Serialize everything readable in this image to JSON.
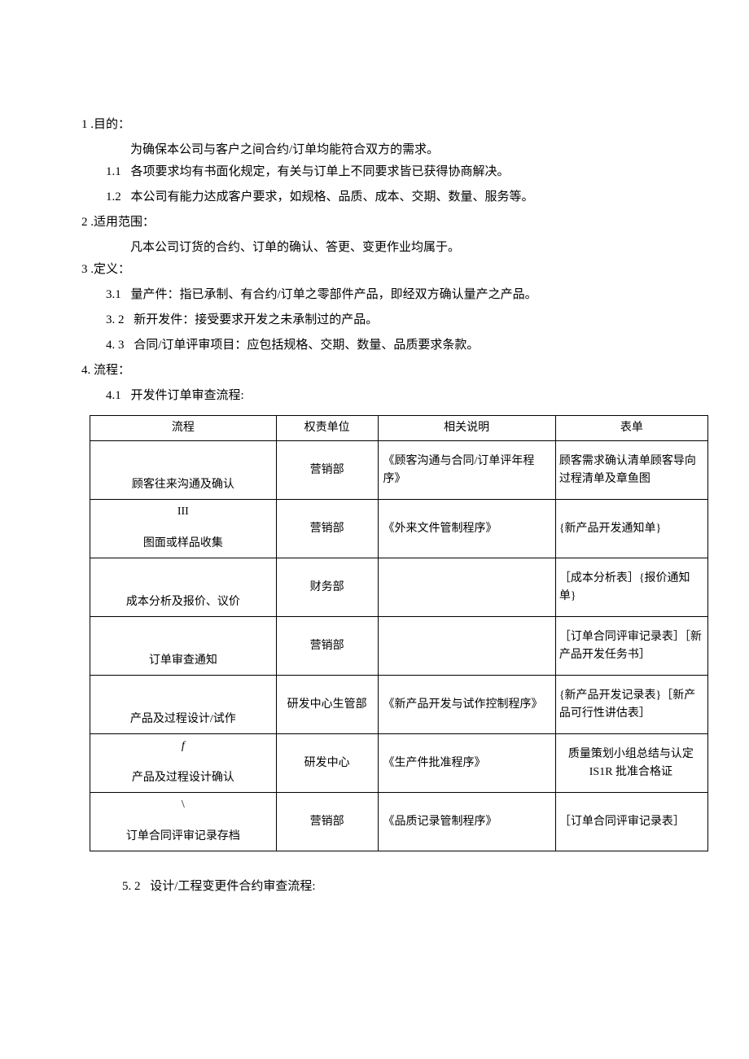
{
  "sections": {
    "s1": {
      "num": "1",
      "title": " .目的："
    },
    "s1_body": "为确保本公司与客户之间合约/订单均能符合双方的需求。",
    "s1_1": {
      "num": "1.1",
      "text": "各项要求均有书面化规定，有关与订单上不同要求皆已获得协商解决。"
    },
    "s1_2": {
      "num": "1.2",
      "text": "本公司有能力达成客户要求，如规格、品质、成本、交期、数量、服务等。"
    },
    "s2": {
      "num": "2",
      "title": " .适用范围："
    },
    "s2_body": "凡本公司订货的合约、订单的确认、答更、变更作业均属于。",
    "s3": {
      "num": "3",
      "title": " .定义："
    },
    "s3_1": {
      "num": "3.1",
      "text": "量产件：指已承制、有合约/订单之零部件产品，即经双方确认量产之产品。"
    },
    "s3_2": {
      "num": "3.  2",
      "text": "新开发件：接受要求开发之未承制过的产品。"
    },
    "s3_3": {
      "num": "4.  3",
      "text": "合同/订单评审项目：应包括规格、交期、数量、品质要求条款。"
    },
    "s4": {
      "num": "4.",
      "title": "流程："
    },
    "s4_1": {
      "num": "4.1",
      "text": "开发件订单审查流程:"
    },
    "s5_2": {
      "num": "5.  2",
      "text": "设计/工程变更件合约审查流程:"
    }
  },
  "table": {
    "headers": [
      "流程",
      "权责单位",
      "相关说明",
      "表单"
    ],
    "rows": [
      {
        "flow": "顾客往来沟通及确认",
        "symbol": "",
        "dept": "营销部",
        "desc": "《顾客沟通与合同/订单评年程序》",
        "form": "顾客需求确认清单顾客导向过程清单及章鱼图"
      },
      {
        "flow": "图面或样品收集",
        "symbol": "III",
        "dept": "营销部",
        "desc": "《外来文件管制程序》",
        "form": "{新产品开发通知单}"
      },
      {
        "flow": "成本分析及报价、议价",
        "symbol": "",
        "dept": "财务部",
        "desc": "",
        "form": "［成本分析表］{报价通知单}"
      },
      {
        "flow": "订单审查通知",
        "symbol": "",
        "dept": "营销部",
        "desc": "",
        "form": "［订单合同评审记录表］［新产品开发任务书］"
      },
      {
        "flow": "产品及过程设计/试作",
        "symbol": "",
        "dept": "研发中心生管部",
        "desc": "《新产品开发与试作控制程序》",
        "form": "{新产品开发记录表}［新产品可行性讲估表］"
      },
      {
        "flow": "产品及过程设计确认",
        "symbol": "f",
        "dept": "研发中心",
        "desc": "《生产件批准程序》",
        "form": "质量策划小组总结与认定\nIS1R 批准合格证",
        "formCenter": true
      },
      {
        "flow": "订单合同评审记录存档",
        "symbol": "\\",
        "dept": "营销部",
        "desc": "《品质记录管制程序》",
        "form": "［订单合同评审记录表］"
      }
    ]
  },
  "style": {
    "font_family": "SimSun",
    "body_fontsize": 15,
    "table_fontsize": 14,
    "text_color": "#000000",
    "border_color": "#000000",
    "background": "#ffffff"
  }
}
